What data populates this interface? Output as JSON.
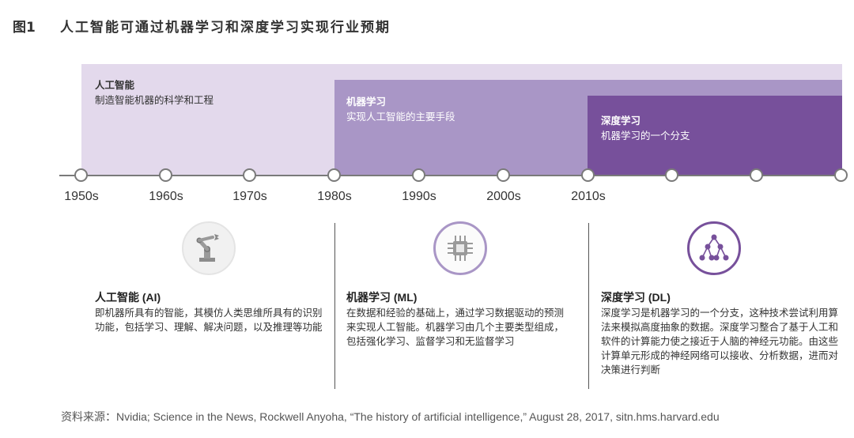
{
  "figure": {
    "label": "图1",
    "title": "人工智能可通过机器学习和深度学习实现行业预期"
  },
  "bands": {
    "ai": {
      "title": "人工智能",
      "subtitle": "制造智能机器的科学和工程",
      "color": "#e3d9ec"
    },
    "ml": {
      "title": "机器学习",
      "subtitle": "实现人工智能的主要手段",
      "color": "#a996c6"
    },
    "dl": {
      "title": "深度学习",
      "subtitle": "机器学习的一个分支",
      "color": "#77509b"
    }
  },
  "timeline": {
    "ticks": [
      "1950s",
      "1960s",
      "1970s",
      "1980s",
      "1990s",
      "2000s",
      "2010s"
    ]
  },
  "icons": {
    "ai": "robot-arm-icon",
    "ml": "microchip-icon",
    "dl": "network-tree-icon"
  },
  "descriptions": {
    "ai": {
      "heading": "人工智能 (AI)",
      "body": "即机器所具有的智能，其模仿人类思维所具有的识别功能，包括学习、理解、解决问题，以及推理等功能"
    },
    "ml": {
      "heading": "机器学习 (ML)",
      "body": "在数据和经验的基础上，通过学习数据驱动的预测来实现人工智能。机器学习由几个主要类型组成，包括强化学习、监督学习和无监督学习"
    },
    "dl": {
      "heading": "深度学习 (DL)",
      "body": "深度学习是机器学习的一个分支，这种技术尝试利用算法来模拟高度抽象的数据。深度学习整合了基于人工和软件的计算能力使之接近于人脑的神经元功能。由这些计算单元形成的神经网络可以接收、分析数据，进而对决策进行判断"
    }
  },
  "source": "资料来源：Nvidia; Science in the News, Rockwell Anyoha, “The history of artificial intelligence,” August 28, 2017, sitn.hms.harvard.edu"
}
